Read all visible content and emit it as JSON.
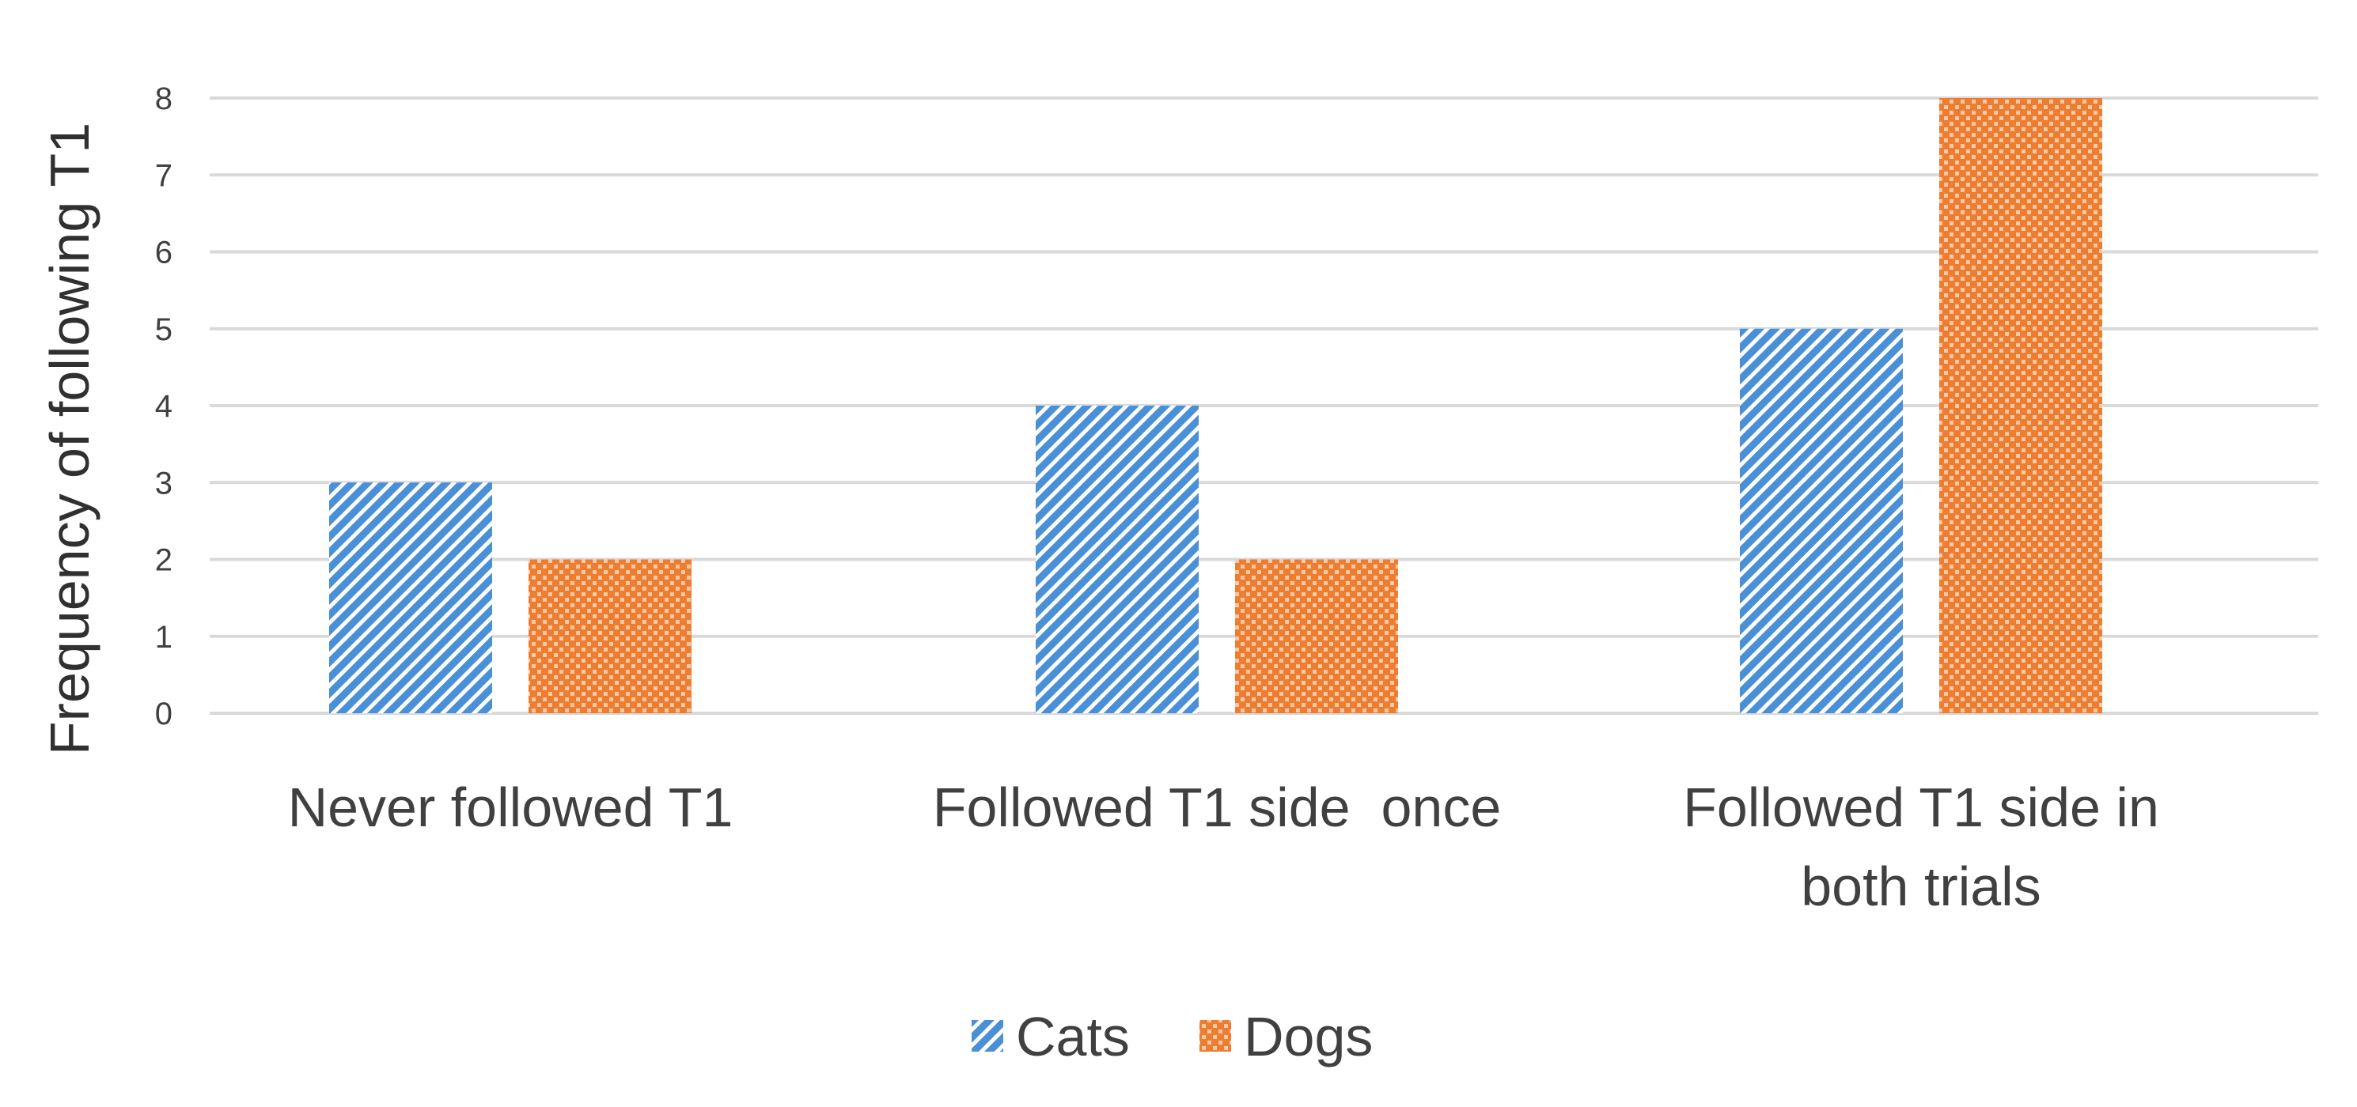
{
  "chart_data": {
    "type": "bar",
    "categories": [
      [
        "Never followed T1"
      ],
      [
        "Followed T1 side  once"
      ],
      [
        "Followed T1 side in",
        "both trials"
      ]
    ],
    "series": [
      {
        "name": "Cats",
        "values": [
          3,
          4,
          5
        ],
        "color": "#4a90d9"
      },
      {
        "name": "Dogs",
        "values": [
          2,
          2,
          8
        ],
        "color": "#ed7d31"
      }
    ],
    "ylabel": "Frequency of following T1",
    "xlabel": "",
    "ylim": [
      0,
      8
    ],
    "yticks": [
      0,
      1,
      2,
      3,
      4,
      5,
      6,
      7,
      8
    ],
    "grid": true,
    "legend": "bottom"
  }
}
